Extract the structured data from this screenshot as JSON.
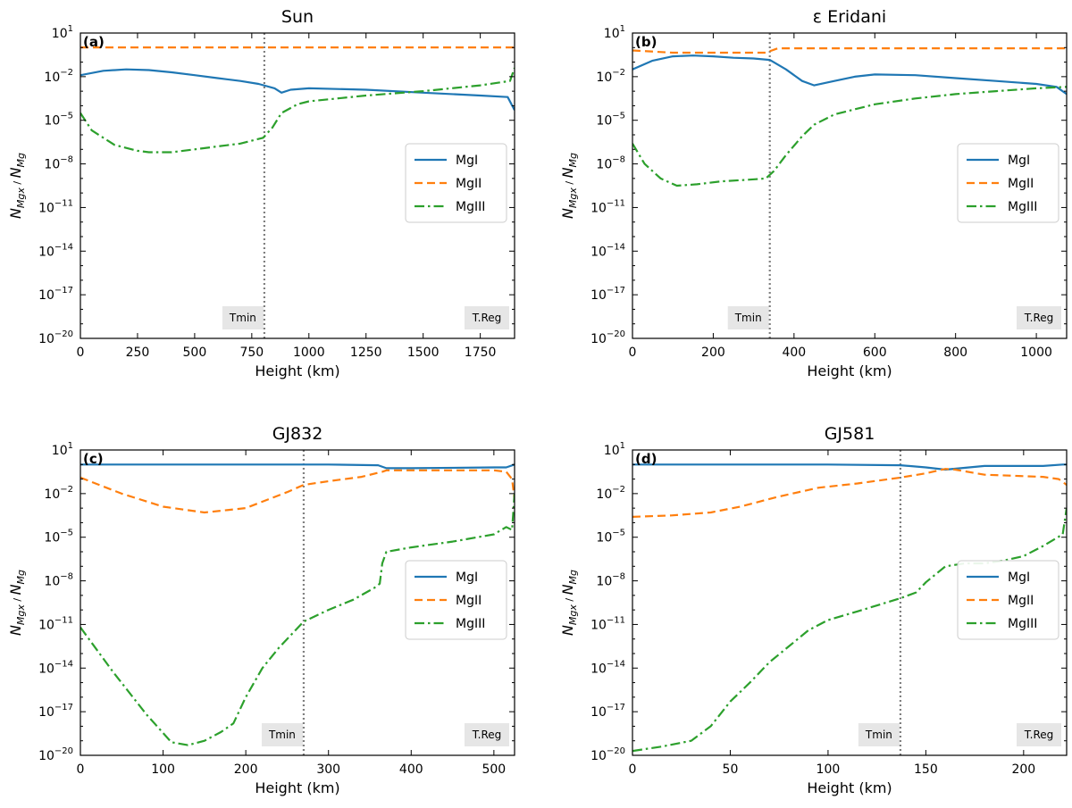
{
  "colors": {
    "mg1": "#1f77b4",
    "mg2": "#ff7f0e",
    "mg3": "#2ca02c",
    "marker_line": "#7f7f7f",
    "label_box": "#e6e6e6"
  },
  "chart_data": [
    {
      "type": "line",
      "panel": "(a)",
      "title": "Sun",
      "xlabel": "Height (km)",
      "ylabel": "N_Mgx / N_Mg",
      "xlim": [
        0,
        1900
      ],
      "ylim_log10": [
        -20,
        1
      ],
      "xticks": [
        0,
        250,
        500,
        750,
        1000,
        1250,
        1500,
        1750
      ],
      "xtick_labels": [
        "0",
        "250",
        "500",
        "750",
        "1000",
        "1250",
        "1500",
        "1750"
      ],
      "yticks_log10": [
        -20,
        -17,
        -14,
        -11,
        -8,
        -5,
        -2,
        1
      ],
      "ytick_base": "10",
      "ytick_exponents": [
        "−20",
        "−17",
        "−14",
        "−11",
        "−8",
        "−5",
        "−2",
        "1"
      ],
      "legend": {
        "position": "center-right",
        "entries": [
          "MgI",
          "MgII",
          "MgIII"
        ]
      },
      "tmin": {
        "x": 805,
        "label": "Tmin"
      },
      "treg": {
        "label": "T.Reg"
      },
      "series": [
        {
          "name": "MgI",
          "style": "solid",
          "x": [
            0,
            100,
            200,
            300,
            400,
            500,
            600,
            700,
            780,
            850,
            880,
            920,
            1000,
            1250,
            1500,
            1750,
            1870,
            1900
          ],
          "log10": [
            -1.9,
            -1.6,
            -1.5,
            -1.55,
            -1.7,
            -1.9,
            -2.1,
            -2.3,
            -2.5,
            -2.8,
            -3.1,
            -2.9,
            -2.8,
            -2.9,
            -3.1,
            -3.3,
            -3.4,
            -4.3
          ]
        },
        {
          "name": "MgII",
          "style": "dashed",
          "x": [
            0,
            1900
          ],
          "log10": [
            0.01,
            0.01
          ]
        },
        {
          "name": "MgIII",
          "style": "dashdot",
          "x": [
            0,
            50,
            150,
            250,
            300,
            400,
            500,
            600,
            700,
            800,
            840,
            880,
            950,
            1000,
            1250,
            1500,
            1750,
            1880,
            1900
          ],
          "log10": [
            -4.5,
            -5.7,
            -6.7,
            -7.1,
            -7.2,
            -7.2,
            -7.0,
            -6.8,
            -6.6,
            -6.2,
            -5.5,
            -4.5,
            -3.9,
            -3.7,
            -3.3,
            -3.0,
            -2.6,
            -2.3,
            -1.4
          ]
        }
      ]
    },
    {
      "type": "line",
      "panel": "(b)",
      "title": "ε Eridani",
      "xlabel": "Height (km)",
      "ylabel": "N_Mgx / N_Mg",
      "xlim": [
        0,
        1075
      ],
      "ylim_log10": [
        -20,
        1
      ],
      "xticks": [
        0,
        200,
        400,
        600,
        800,
        1000
      ],
      "xtick_labels": [
        "0",
        "200",
        "400",
        "600",
        "800",
        "1000"
      ],
      "yticks_log10": [
        -20,
        -17,
        -14,
        -11,
        -8,
        -5,
        -2,
        1
      ],
      "ytick_base": "10",
      "ytick_exponents": [
        "−20",
        "−17",
        "−14",
        "−11",
        "−8",
        "−5",
        "−2",
        "1"
      ],
      "legend": {
        "position": "center-right",
        "entries": [
          "MgI",
          "MgII",
          "MgIII"
        ]
      },
      "tmin": {
        "x": 340,
        "label": "Tmin"
      },
      "treg": {
        "label": "T.Reg"
      },
      "series": [
        {
          "name": "MgI",
          "style": "solid",
          "x": [
            0,
            50,
            100,
            150,
            200,
            250,
            300,
            340,
            380,
            420,
            450,
            500,
            550,
            600,
            700,
            800,
            900,
            1000,
            1050,
            1075
          ],
          "log10": [
            -1.5,
            -0.9,
            -0.6,
            -0.55,
            -0.6,
            -0.7,
            -0.75,
            -0.85,
            -1.5,
            -2.3,
            -2.6,
            -2.3,
            -2.0,
            -1.85,
            -1.9,
            -2.1,
            -2.3,
            -2.5,
            -2.7,
            -3.2
          ]
        },
        {
          "name": "MgII",
          "style": "dashed",
          "x": [
            0,
            100,
            330,
            360,
            1075
          ],
          "log10": [
            -0.2,
            -0.35,
            -0.35,
            -0.05,
            -0.05
          ]
        },
        {
          "name": "MgIII",
          "style": "dashdot",
          "x": [
            0,
            30,
            70,
            110,
            160,
            220,
            280,
            330,
            350,
            380,
            420,
            450,
            500,
            600,
            700,
            800,
            900,
            1000,
            1075
          ],
          "log10": [
            -6.6,
            -8.0,
            -9.0,
            -9.5,
            -9.4,
            -9.2,
            -9.1,
            -9.0,
            -8.5,
            -7.4,
            -6.1,
            -5.3,
            -4.6,
            -3.9,
            -3.5,
            -3.2,
            -3.0,
            -2.8,
            -2.7
          ]
        }
      ]
    },
    {
      "type": "line",
      "panel": "(c)",
      "title": "GJ832",
      "xlabel": "Height (km)",
      "ylabel": "N_Mgx / N_Mg",
      "xlim": [
        0,
        525
      ],
      "ylim_log10": [
        -20,
        1
      ],
      "xticks": [
        0,
        100,
        200,
        300,
        400,
        500
      ],
      "xtick_labels": [
        "0",
        "100",
        "200",
        "300",
        "400",
        "500"
      ],
      "yticks_log10": [
        -20,
        -17,
        -14,
        -11,
        -8,
        -5,
        -2,
        1
      ],
      "ytick_base": "10",
      "ytick_exponents": [
        "−20",
        "−17",
        "−14",
        "−11",
        "−8",
        "−5",
        "−2",
        "1"
      ],
      "legend": {
        "position": "center-right",
        "entries": [
          "MgI",
          "MgII",
          "MgIII"
        ]
      },
      "tmin": {
        "x": 270,
        "label": "Tmin"
      },
      "treg": {
        "label": "T.Reg"
      },
      "series": [
        {
          "name": "MgI",
          "style": "solid",
          "x": [
            0,
            100,
            200,
            300,
            360,
            370,
            400,
            500,
            515,
            525
          ],
          "log10": [
            0.0,
            0.0,
            0.0,
            0.0,
            -0.05,
            -0.25,
            -0.25,
            -0.2,
            -0.2,
            0.0
          ]
        },
        {
          "name": "MgII",
          "style": "dashed",
          "x": [
            0,
            50,
            100,
            150,
            200,
            250,
            270,
            300,
            340,
            365,
            370,
            400,
            500,
            515,
            522,
            525
          ],
          "log10": [
            -0.9,
            -2.0,
            -2.9,
            -3.3,
            -3.0,
            -1.9,
            -1.4,
            -1.15,
            -0.85,
            -0.5,
            -0.4,
            -0.4,
            -0.4,
            -0.5,
            -1.0,
            -2.4
          ]
        },
        {
          "name": "MgIII",
          "style": "dashdot",
          "x": [
            0,
            40,
            80,
            110,
            130,
            150,
            170,
            185,
            200,
            220,
            240,
            270,
            300,
            330,
            355,
            362,
            365,
            370,
            400,
            450,
            500,
            515,
            522,
            525
          ],
          "log10": [
            -11.2,
            -14.3,
            -17.2,
            -19.1,
            -19.3,
            -19.0,
            -18.4,
            -17.8,
            -16.0,
            -14.0,
            -12.6,
            -10.8,
            -10.0,
            -9.3,
            -8.5,
            -8.2,
            -6.8,
            -6.0,
            -5.7,
            -5.3,
            -4.8,
            -4.3,
            -4.5,
            -2.0
          ]
        }
      ]
    },
    {
      "type": "line",
      "panel": "(d)",
      "title": "GJ581",
      "xlabel": "Height (km)",
      "ylabel": "N_Mgx / N_Mg",
      "xlim": [
        0,
        222
      ],
      "ylim_log10": [
        -20,
        1
      ],
      "xticks": [
        0,
        50,
        100,
        150,
        200
      ],
      "xtick_labels": [
        "0",
        "50",
        "100",
        "150",
        "200"
      ],
      "yticks_log10": [
        -20,
        -17,
        -14,
        -11,
        -8,
        -5,
        -2,
        1
      ],
      "ytick_base": "10",
      "ytick_exponents": [
        "−20",
        "−17",
        "−14",
        "−11",
        "−8",
        "−5",
        "−2",
        "1"
      ],
      "legend": {
        "position": "center-right",
        "entries": [
          "MgI",
          "MgII",
          "MgIII"
        ]
      },
      "tmin": {
        "x": 137,
        "label": "Tmin"
      },
      "treg": {
        "label": "T.Reg"
      },
      "series": [
        {
          "name": "MgI",
          "style": "solid",
          "x": [
            0,
            50,
            100,
            137,
            150,
            160,
            180,
            200,
            210,
            220,
            222
          ],
          "log10": [
            0.0,
            0.0,
            0.0,
            -0.05,
            -0.2,
            -0.35,
            -0.1,
            -0.1,
            -0.1,
            0.0,
            0.0
          ]
        },
        {
          "name": "MgII",
          "style": "dashed",
          "x": [
            0,
            20,
            40,
            55,
            75,
            95,
            115,
            137,
            150,
            160,
            165,
            180,
            200,
            210,
            218,
            222
          ],
          "log10": [
            -3.6,
            -3.5,
            -3.3,
            -2.9,
            -2.2,
            -1.6,
            -1.3,
            -0.9,
            -0.6,
            -0.3,
            -0.35,
            -0.7,
            -0.8,
            -0.85,
            -1.0,
            -1.4
          ]
        },
        {
          "name": "MgIII",
          "style": "dashdot",
          "x": [
            0,
            15,
            30,
            40,
            50,
            60,
            70,
            80,
            90,
            100,
            115,
            137,
            145,
            150,
            160,
            170,
            180,
            190,
            200,
            210,
            220,
            222
          ],
          "log10": [
            -19.7,
            -19.4,
            -19.0,
            -18.0,
            -16.3,
            -15.0,
            -13.6,
            -12.5,
            -11.4,
            -10.7,
            -10.1,
            -9.2,
            -8.8,
            -8.1,
            -7.0,
            -6.8,
            -6.8,
            -6.6,
            -6.3,
            -5.6,
            -4.8,
            -3.0
          ]
        }
      ]
    }
  ]
}
